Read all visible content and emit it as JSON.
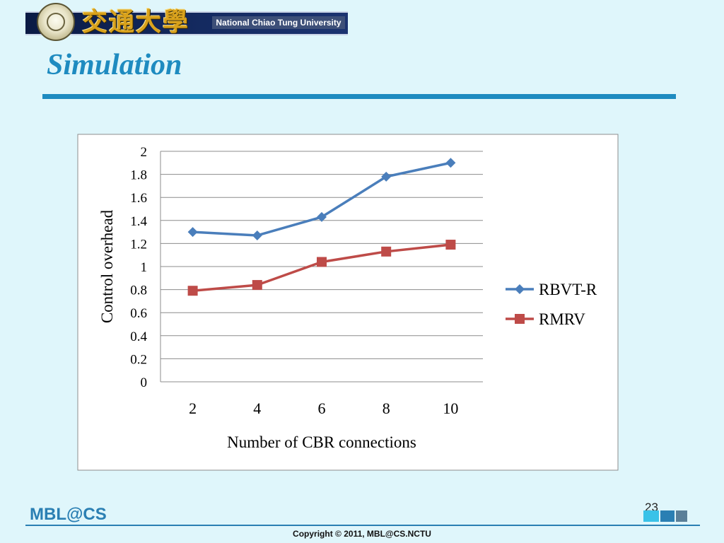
{
  "header": {
    "university_cjk": "交通大學",
    "university_en": "National Chiao Tung University",
    "slide_title": "Simulation"
  },
  "chart_data": {
    "type": "line",
    "title": "",
    "xlabel": "Number of CBR connections",
    "ylabel": "Control overhead",
    "categories": [
      "2",
      "4",
      "6",
      "8",
      "10"
    ],
    "y_ticks": [
      "0",
      "0.2",
      "0.4",
      "0.6",
      "0.8",
      "1",
      "1.2",
      "1.4",
      "1.6",
      "1.8",
      "2"
    ],
    "ylim": [
      0,
      2
    ],
    "grid": true,
    "legend_position": "right",
    "series": [
      {
        "name": "RBVT-R",
        "marker": "diamond",
        "color": "#4a7ebb",
        "values": [
          1.3,
          1.27,
          1.43,
          1.78,
          1.9
        ]
      },
      {
        "name": "RMRV",
        "marker": "square",
        "color": "#be4b48",
        "values": [
          0.79,
          0.84,
          1.04,
          1.13,
          1.19
        ]
      }
    ]
  },
  "footer": {
    "logo": "MBL@CS",
    "page_number": "23",
    "copyright": "Copyright © 2011, MBL@CS.NCTU"
  },
  "colors": {
    "background": "#dff6fb",
    "accent": "#1e8bc0",
    "banner": "#142a60"
  }
}
